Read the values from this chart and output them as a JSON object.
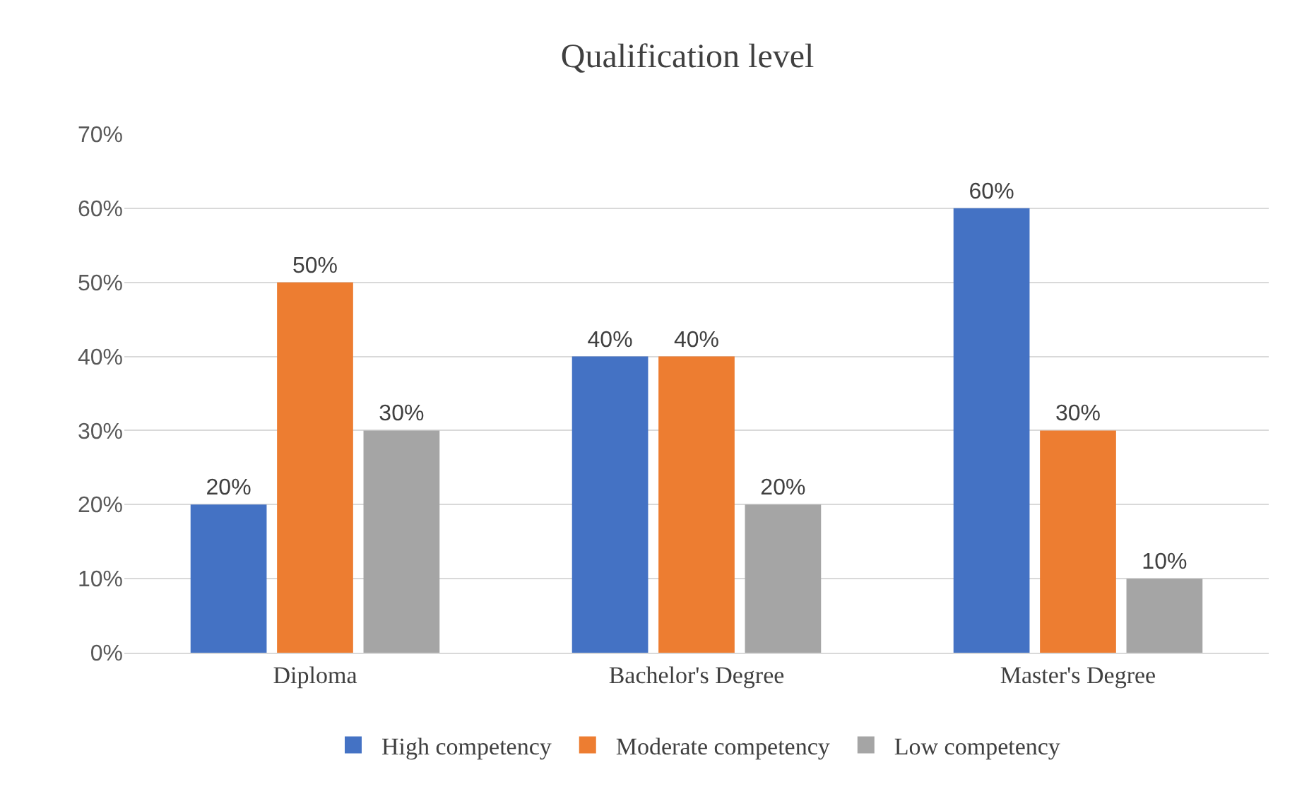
{
  "chart_data": {
    "type": "bar",
    "title": "Qualification level",
    "categories": [
      "Diploma",
      "Bachelor's Degree",
      "Master's Degree"
    ],
    "series": [
      {
        "name": "High competency",
        "color": "#4472c4",
        "values": [
          20,
          40,
          60
        ],
        "value_labels": [
          "20%",
          "40%",
          "60%"
        ]
      },
      {
        "name": "Moderate competency",
        "color": "#ed7d31",
        "values": [
          50,
          40,
          30
        ],
        "value_labels": [
          "50%",
          "40%",
          "30%"
        ]
      },
      {
        "name": "Low competency",
        "color": "#a5a5a5",
        "values": [
          30,
          20,
          10
        ],
        "value_labels": [
          "30%",
          "20%",
          "10%"
        ]
      }
    ],
    "ylim": [
      0,
      70
    ],
    "yticks": [
      {
        "value": 0,
        "label": "0%"
      },
      {
        "value": 10,
        "label": "10%"
      },
      {
        "value": 20,
        "label": "20%"
      },
      {
        "value": 30,
        "label": "30%"
      },
      {
        "value": 40,
        "label": "40%"
      },
      {
        "value": 50,
        "label": "50%"
      },
      {
        "value": 60,
        "label": "60%"
      },
      {
        "value": 70,
        "label": "70%"
      }
    ],
    "grid": "y",
    "legend": "bottom"
  }
}
